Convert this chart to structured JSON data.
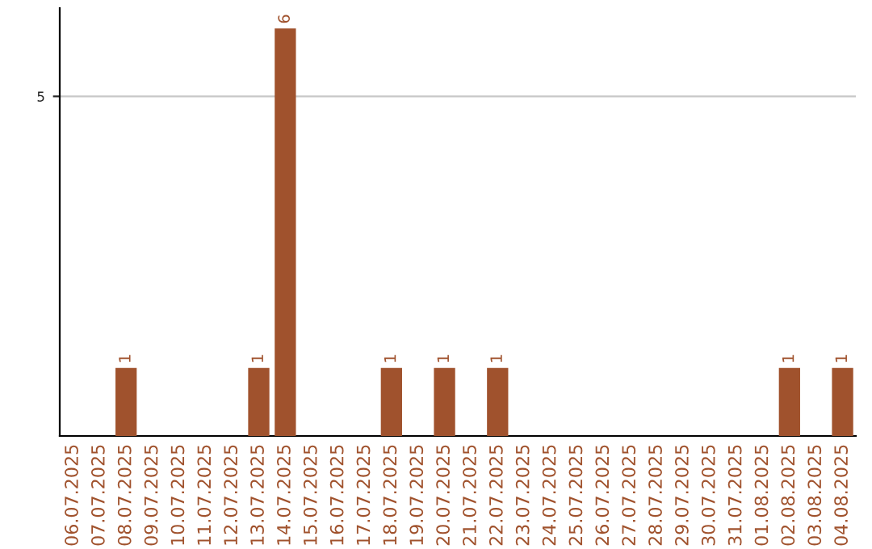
{
  "chart_data": {
    "type": "bar",
    "categories": [
      "06.07.2025",
      "07.07.2025",
      "08.07.2025",
      "09.07.2025",
      "10.07.2025",
      "11.07.2025",
      "12.07.2025",
      "13.07.2025",
      "14.07.2025",
      "15.07.2025",
      "16.07.2025",
      "17.07.2025",
      "18.07.2025",
      "19.07.2025",
      "20.07.2025",
      "21.07.2025",
      "22.07.2025",
      "23.07.2025",
      "24.07.2025",
      "25.07.2025",
      "26.07.2025",
      "27.07.2025",
      "28.07.2025",
      "29.07.2025",
      "30.07.2025",
      "31.07.2025",
      "01.08.2025",
      "02.08.2025",
      "03.08.2025",
      "04.08.2025"
    ],
    "values": [
      0,
      0,
      1,
      0,
      0,
      0,
      0,
      1,
      6,
      0,
      0,
      0,
      1,
      0,
      1,
      0,
      1,
      0,
      0,
      0,
      0,
      0,
      0,
      0,
      0,
      0,
      0,
      1,
      0,
      1
    ],
    "value_labels": [
      null,
      null,
      "1",
      null,
      null,
      null,
      null,
      "1",
      "6",
      null,
      null,
      null,
      "1",
      null,
      "1",
      null,
      "1",
      null,
      null,
      null,
      null,
      null,
      null,
      null,
      null,
      null,
      null,
      "1",
      null,
      "1"
    ],
    "color": "#a0522d",
    "ylim": [
      0,
      6.3
    ],
    "yticks": [
      5
    ],
    "grid": "y",
    "legend": false
  }
}
